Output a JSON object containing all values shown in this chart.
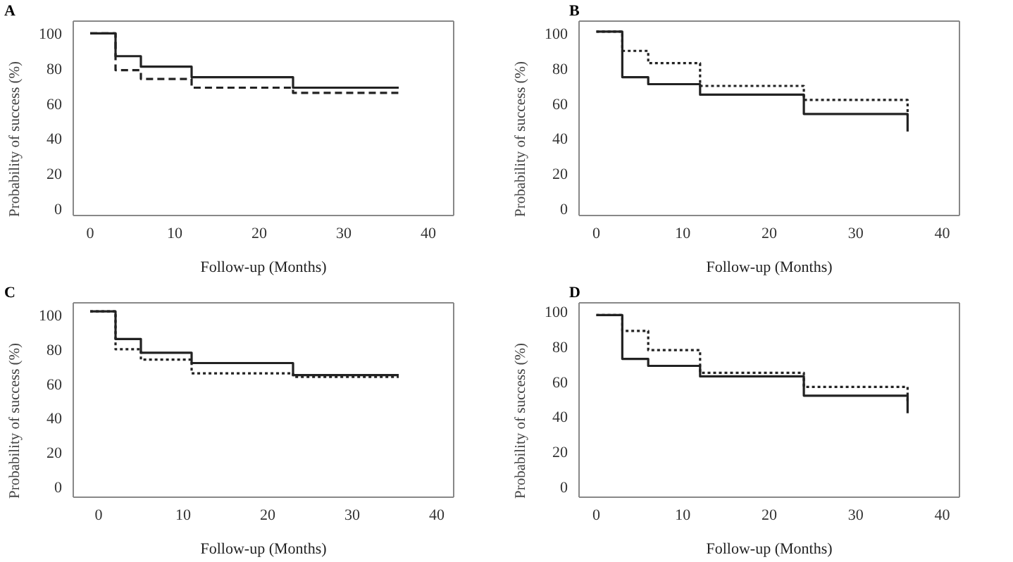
{
  "chart_data": [
    {
      "type": "step",
      "title": "A",
      "xlabel": "Follow-up  (Months)",
      "ylabel": "Probability  of  success (%)",
      "xlim": [
        -2,
        43
      ],
      "xticks": [
        0,
        10,
        20,
        30,
        40
      ],
      "ylim": [
        -4,
        107
      ],
      "yticks": [
        0,
        20,
        40,
        60,
        80,
        100
      ],
      "series": [
        {
          "color": "#222222",
          "line_style": "solid",
          "x": [
            0,
            3,
            6,
            12,
            24,
            36.5
          ],
          "values": [
            100,
            87,
            81,
            75,
            69,
            69
          ]
        },
        {
          "color": "#222222",
          "line_style": "dashed",
          "x": [
            0,
            3,
            6,
            12,
            24,
            36.5
          ],
          "values": [
            100,
            79,
            74,
            69,
            66,
            66
          ]
        }
      ]
    },
    {
      "type": "step",
      "title": "B",
      "xlabel": "Follow-up  (Months)",
      "ylabel": "Probability  of  success (%)",
      "xlim": [
        -2,
        42
      ],
      "xticks": [
        0,
        10,
        20,
        30,
        40
      ],
      "ylim": [
        -4,
        107
      ],
      "yticks": [
        0,
        20,
        40,
        60,
        80,
        100
      ],
      "series": [
        {
          "color": "#222222",
          "line_style": "solid",
          "x": [
            0,
            3,
            6,
            12,
            24,
            36
          ],
          "values": [
            101,
            75,
            71,
            65,
            54,
            44
          ]
        },
        {
          "color": "#222222",
          "line_style": "dotted",
          "x": [
            0,
            3,
            6,
            12,
            24,
            36
          ],
          "values": [
            101,
            90,
            83,
            70,
            62,
            53
          ]
        }
      ]
    },
    {
      "type": "step",
      "title": "C",
      "xlabel": "Follow-up  (Months)",
      "ylabel": "Probability  of  success (%)",
      "xlim": [
        -3,
        42
      ],
      "xticks": [
        0,
        10,
        20,
        30,
        40
      ],
      "ylim": [
        -6,
        107
      ],
      "yticks": [
        0,
        20,
        40,
        60,
        80,
        100
      ],
      "series": [
        {
          "color": "#222222",
          "line_style": "solid",
          "x": [
            -1,
            2,
            5,
            11,
            23,
            35.5
          ],
          "values": [
            102,
            86,
            78,
            72,
            65,
            65
          ]
        },
        {
          "color": "#222222",
          "line_style": "dotted",
          "x": [
            -1,
            2,
            5,
            11,
            23,
            35.5
          ],
          "values": [
            102,
            80,
            74,
            66,
            64,
            64
          ]
        }
      ]
    },
    {
      "type": "step",
      "title": "D",
      "xlabel": "Follow-up  (Months)",
      "ylabel": "Probability  of  success (%)",
      "xlim": [
        -2,
        42
      ],
      "xticks": [
        0,
        10,
        20,
        30,
        40
      ],
      "ylim": [
        -6,
        105
      ],
      "yticks": [
        0,
        20,
        40,
        60,
        80,
        100
      ],
      "series": [
        {
          "color": "#222222",
          "line_style": "solid",
          "x": [
            0,
            3,
            6,
            12,
            24,
            36
          ],
          "values": [
            98,
            73,
            69,
            63,
            52,
            42
          ]
        },
        {
          "color": "#222222",
          "line_style": "dotted",
          "x": [
            0,
            3,
            6,
            12,
            24,
            36
          ],
          "values": [
            98,
            89,
            78,
            65,
            57,
            48
          ]
        }
      ]
    }
  ]
}
